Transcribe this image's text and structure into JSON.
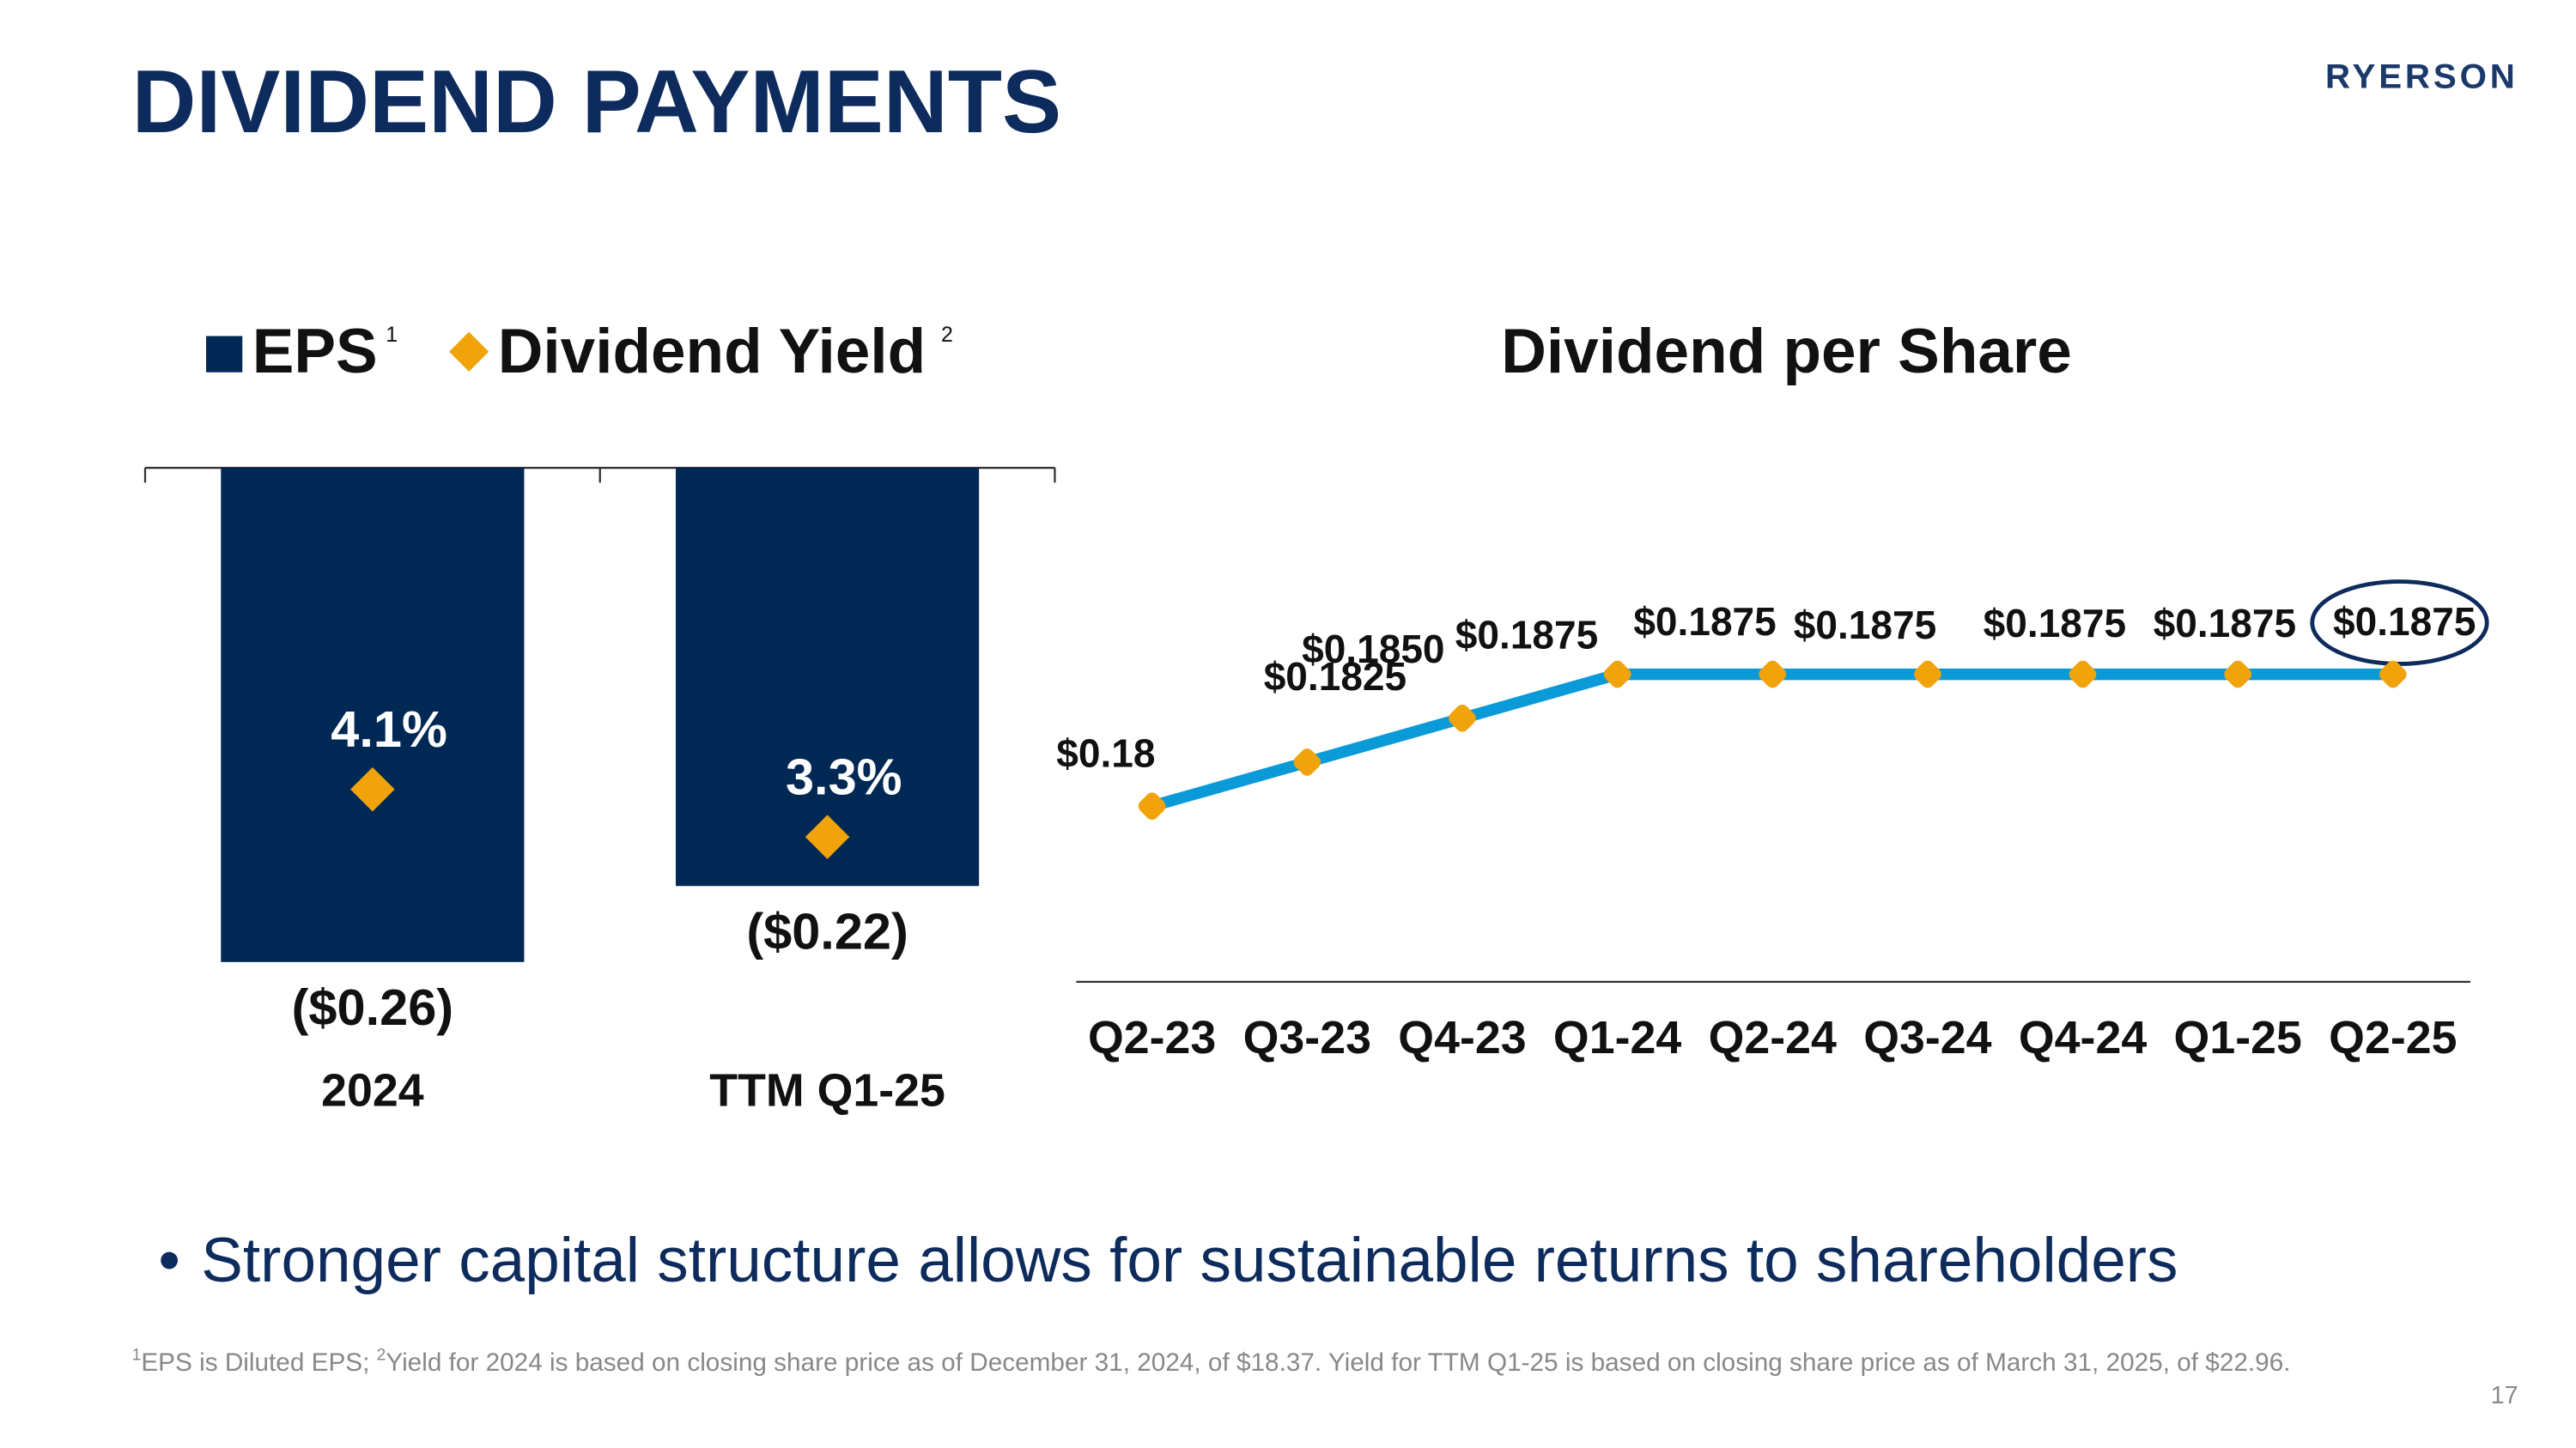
{
  "header": {
    "title": "DIVIDEND PAYMENTS",
    "logo": "RYERSON"
  },
  "chart_data": [
    {
      "type": "bar",
      "categories": [
        "2024",
        "TTM Q1-25"
      ],
      "series": [
        {
          "name": "EPS",
          "footnote": "1",
          "color": "#002855",
          "values": [
            -0.26,
            -0.22
          ],
          "value_labels": [
            "($0.26)",
            "($0.22)"
          ]
        },
        {
          "name": "Dividend Yield",
          "footnote": "2",
          "color": "#f0a30a",
          "axis": "y2",
          "values": [
            4.1,
            3.3
          ],
          "value_labels": [
            "4.1%",
            "3.3%"
          ]
        }
      ],
      "ylim": [
        -0.26,
        0
      ],
      "y2lim": [
        1.2,
        9.5
      ]
    },
    {
      "type": "line",
      "title": "Dividend per Share",
      "categories": [
        "Q2-23",
        "Q3-23",
        "Q4-23",
        "Q1-24",
        "Q2-24",
        "Q3-24",
        "Q4-24",
        "Q1-25",
        "Q2-25"
      ],
      "series": [
        {
          "color": "#0b9ad8",
          "marker_color": "#f0a30a",
          "values": [
            0.18,
            0.1825,
            0.185,
            0.1875,
            0.1875,
            0.1875,
            0.1875,
            0.1875,
            0.1875
          ],
          "value_labels": [
            "$0.18",
            "$0.1825",
            "$0.1850",
            "$0.1875",
            "$0.1875",
            "$0.1875",
            "$0.1875",
            "$0.1875",
            "$0.1875"
          ]
        }
      ],
      "ylim": [
        0.17,
        0.2
      ]
    }
  ],
  "bullets": [
    "Stronger capital structure allows for sustainable returns to shareholders"
  ],
  "footnote": [
    {
      "sup": "1",
      "text": "EPS is Diluted EPS; "
    },
    {
      "sup": "2",
      "text": "Yield for 2024 is based on closing share price as of December 31, 2024, of $18.37. Yield for TTM Q1-25 is based on closing share price as of March 31, 2025, of $22.96."
    }
  ],
  "page_number": "17"
}
